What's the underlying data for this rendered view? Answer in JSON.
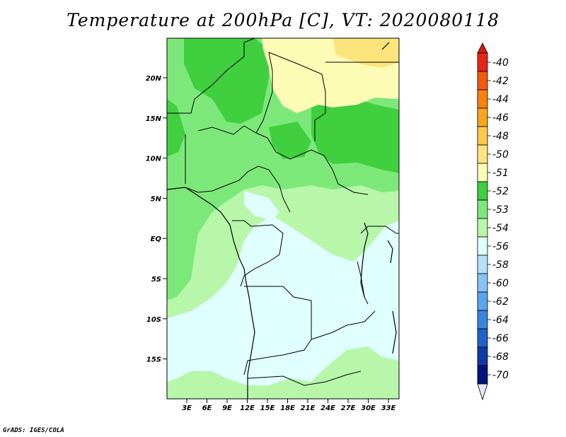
{
  "title": "Temperature at 200hPa [C], VT: 2020080118",
  "credit": "GrADS: IGES/COLA",
  "lat_ticks": [
    "20N",
    "15N",
    "10N",
    "5N",
    "EQ",
    "5S",
    "10S",
    "15S"
  ],
  "lon_ticks": [
    "3E",
    "6E",
    "9E",
    "12E",
    "15E",
    "18E",
    "21E",
    "24E",
    "27E",
    "30E",
    "33E"
  ],
  "legend": {
    "labels": [
      "-40",
      "-42",
      "-44",
      "-46",
      "-48",
      "-50",
      "-51",
      "-52",
      "-53",
      "-54",
      "-56",
      "-58",
      "-60",
      "-62",
      "-64",
      "-66",
      "-68",
      "-70"
    ],
    "colors": [
      "#e8241a",
      "#f25a0c",
      "#f8820a",
      "#f9a51e",
      "#fcc850",
      "#fde57e",
      "#fdfcb7",
      "#3fcf3f",
      "#7de87a",
      "#b8f6aa",
      "#e0ffff",
      "#b5e0f8",
      "#86c3f3",
      "#5aa5ec",
      "#3a86df",
      "#1f62c8",
      "#0d3aa8",
      "#00147a"
    ],
    "top_color": "#d21b0e",
    "bottom_color": "#e6e6fa"
  },
  "palette": {
    "c51": "#fdfcb7",
    "c52": "#3fcf3f",
    "c53": "#7de87a",
    "c54": "#b8f6aa",
    "c56": "#e0ffff"
  }
}
